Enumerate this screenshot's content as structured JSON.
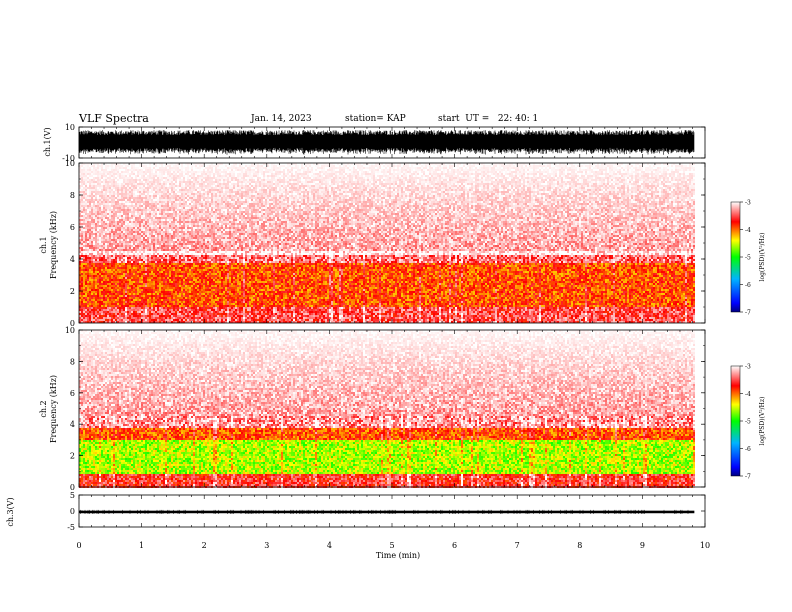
{
  "header": {
    "title": "VLF Spectra",
    "date": "Jan. 14, 2023",
    "station": "station= KAP",
    "start_ut": "start  UT =   22: 40: 1"
  },
  "colors": {
    "colorbar_stops": [
      "#0000ff",
      "#00b4ff",
      "#00ff00",
      "#ffff00",
      "#ff0000",
      "#ffffff"
    ],
    "waveform": "#000000",
    "background": "#ffffff"
  },
  "chart_data": [
    {
      "id": "ch1-waveform",
      "type": "line",
      "ylabel": "ch.1(V)",
      "ylim": [
        -10,
        10
      ],
      "y_ticks": [
        "10",
        "-10"
      ],
      "description_values": {
        "amplitude_fraction_of_range": 0.8
      }
    },
    {
      "id": "ch1-spectrogram",
      "type": "heatmap",
      "ylabel": "ch.1 Frequency (kHz)",
      "ylim": [
        0,
        10
      ],
      "y_ticks": [
        "0",
        "2",
        "4",
        "6",
        "8",
        "10"
      ],
      "colorbar": {
        "label": "log(PSD)(V²/Hz)",
        "range": [
          -7,
          -3
        ],
        "ticks": [
          "-3",
          "-4",
          "-5",
          "-6",
          "-7"
        ]
      },
      "bands_khz": [
        {
          "from": 0,
          "to": 1,
          "level": -3.5
        },
        {
          "from": 1,
          "to": 3.8,
          "level": -3.9
        },
        {
          "from": 3.8,
          "to": 4.3,
          "level": -3.4
        },
        {
          "from": 4.3,
          "to": 10,
          "level": -3.0
        }
      ]
    },
    {
      "id": "ch2-spectrogram",
      "type": "heatmap",
      "ylabel": "ch.2 Frequency (kHz)",
      "ylim": [
        0,
        10
      ],
      "y_ticks": [
        "0",
        "2",
        "4",
        "6",
        "8",
        "10"
      ],
      "colorbar": {
        "label": "log(PSD)(V²/Hz)",
        "range": [
          -7,
          -3
        ],
        "ticks": [
          "-3",
          "-4",
          "-5",
          "-6",
          "-7"
        ]
      },
      "bands_khz": [
        {
          "from": 0,
          "to": 0.8,
          "level": -3.6
        },
        {
          "from": 0.8,
          "to": 3.0,
          "level": -4.6
        },
        {
          "from": 3.0,
          "to": 3.8,
          "level": -3.9
        },
        {
          "from": 3.8,
          "to": 4.5,
          "level": -3.3
        },
        {
          "from": 4.5,
          "to": 10,
          "level": -3.0
        }
      ]
    },
    {
      "id": "ch3-waveform",
      "type": "line",
      "ylabel": "ch.3(V)",
      "ylim": [
        -5,
        5
      ],
      "y_ticks": [
        "5",
        "0",
        "-5"
      ],
      "description_values": {
        "amplitude_volts": 0.4,
        "offset_volts": -0.3
      }
    }
  ],
  "x_axis": {
    "label": "Time (min)",
    "range": [
      0,
      10
    ],
    "data_end": 9.83,
    "ticks": [
      "0",
      "1",
      "2",
      "3",
      "4",
      "5",
      "6",
      "7",
      "8",
      "9",
      "10"
    ]
  }
}
